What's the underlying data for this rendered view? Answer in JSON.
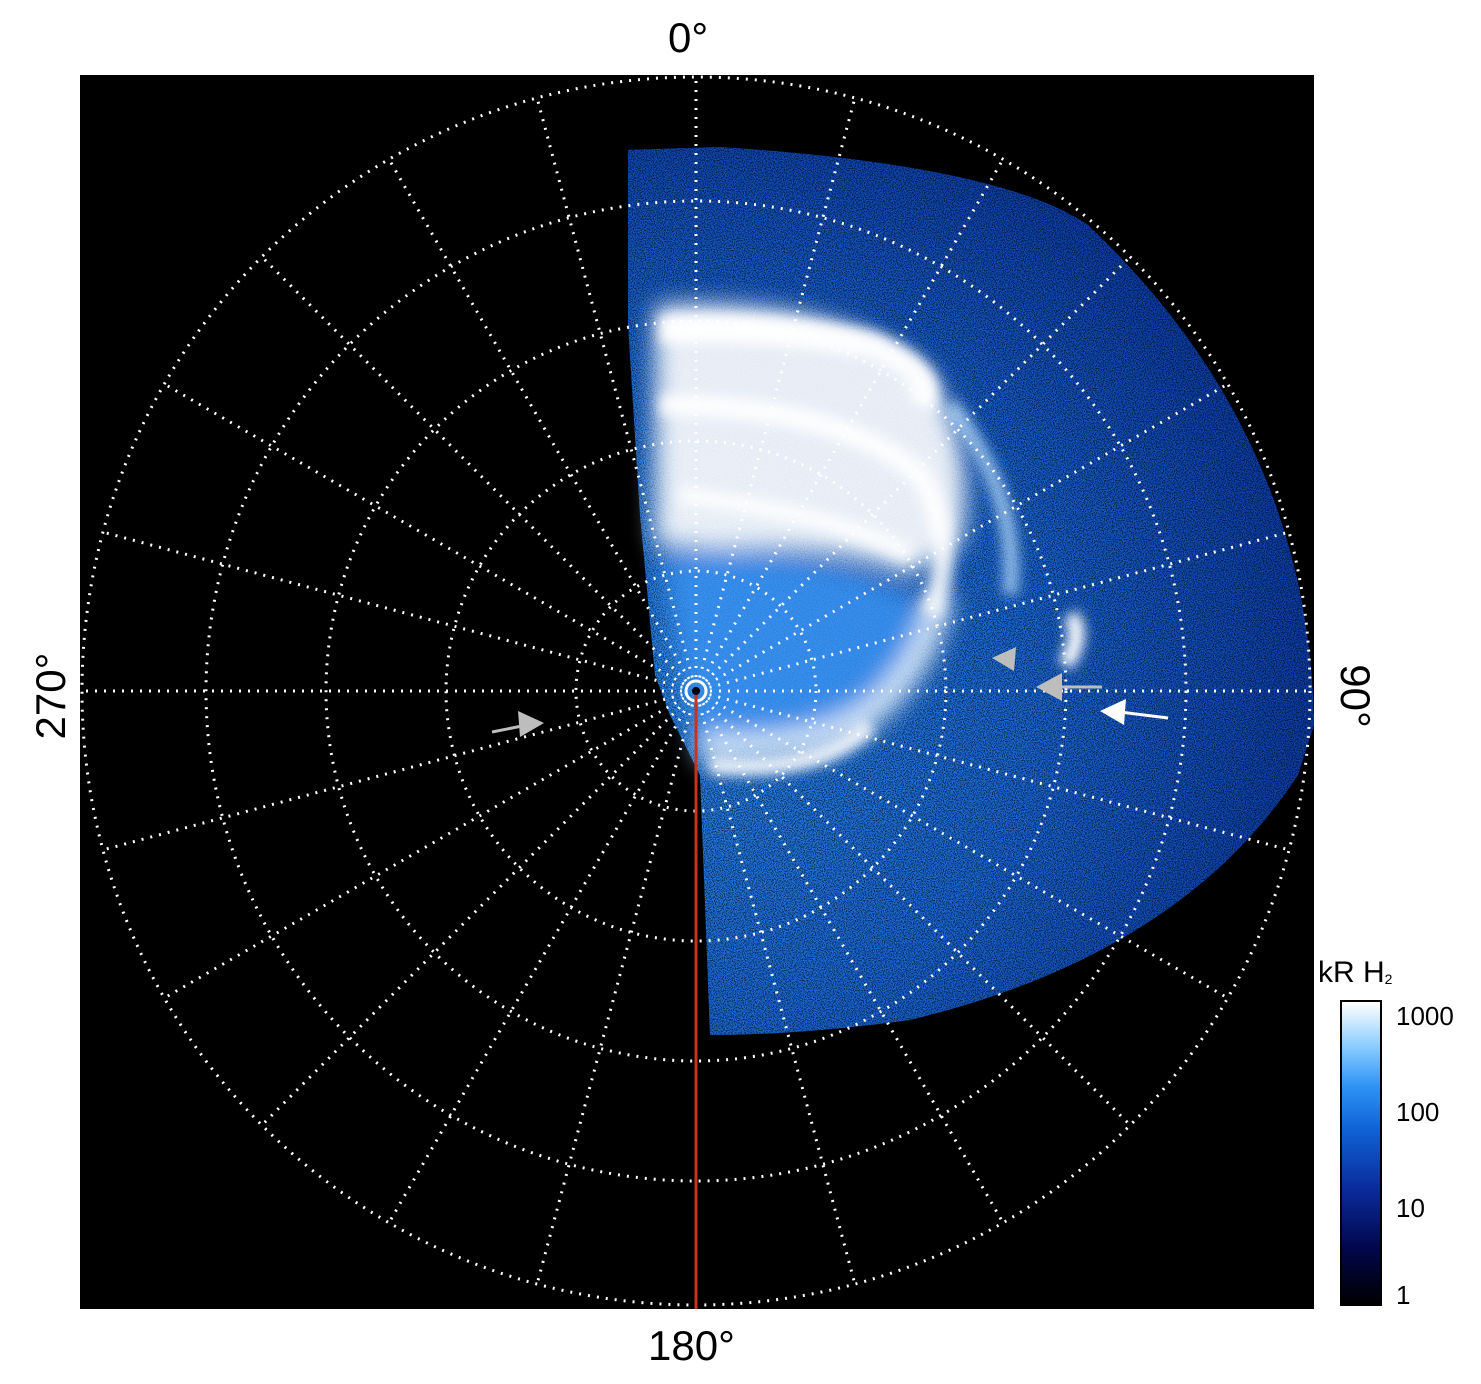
{
  "labels": {
    "top": "0°",
    "right": "90°",
    "bottom": "180°",
    "left": "270°"
  },
  "colorbar": {
    "title": "kR H",
    "title_sub": "2",
    "ticks": [
      "1000",
      "100",
      "10",
      "1"
    ]
  },
  "colors": {
    "background": "#000000",
    "grid": "#ffffff",
    "emission_dim": "#0a3aa8",
    "emission_mid": "#1e7af0",
    "emission_bright": "#ffffff",
    "meridian": "#c8321e",
    "arrow_white": "#ffffff",
    "arrow_grey": "#bdbdbd"
  },
  "icons": [
    "arrow-icon",
    "arrowhead-icon"
  ]
}
